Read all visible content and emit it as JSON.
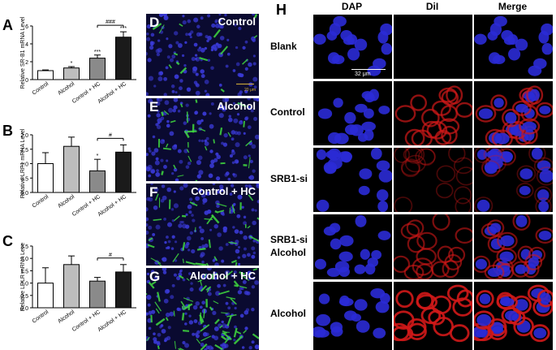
{
  "panels": {
    "A": {
      "letter": "A"
    },
    "B": {
      "letter": "B"
    },
    "C": {
      "letter": "C"
    },
    "D": {
      "letter": "D",
      "label": "Control",
      "scale": "20 μm"
    },
    "E": {
      "letter": "E",
      "label": "Alcohol"
    },
    "F": {
      "letter": "F",
      "label": "Control + HC"
    },
    "G": {
      "letter": "G",
      "label": "Alcohol + HC"
    },
    "H": {
      "letter": "H"
    }
  },
  "chart_data": [
    {
      "type": "bar",
      "panel": "A",
      "categories": [
        "Control",
        "Alcohol",
        "Control + HC",
        "Alcohol + HC"
      ],
      "values": [
        1.0,
        1.3,
        2.4,
        4.75
      ],
      "errors": [
        0.08,
        0.15,
        0.35,
        0.6
      ],
      "colors": [
        "#ffffff",
        "#bdbdbd",
        "#8a8a8a",
        "#1a1a1a"
      ],
      "ylabel": "Relative SR-B1 mRNA Level",
      "ylim": [
        0,
        6
      ],
      "yticks": [
        "0",
        "2",
        "4",
        "6"
      ],
      "annotations": [
        "*",
        "***",
        "***"
      ],
      "bracket": "###"
    },
    {
      "type": "bar",
      "panel": "B",
      "categories": [
        "Control",
        "Alcohol",
        "Control + HC",
        "Alcohol + HC"
      ],
      "values": [
        1.0,
        1.6,
        0.75,
        1.4
      ],
      "errors": [
        0.38,
        0.32,
        0.4,
        0.25
      ],
      "colors": [
        "#ffffff",
        "#bdbdbd",
        "#8a8a8a",
        "#1a1a1a"
      ],
      "ylabel": "Relative LRP1 mRNA Level",
      "ylim": [
        0,
        2.0
      ],
      "yticks": [
        "0.0",
        "0.5",
        "1.0",
        "1.5",
        "2.0"
      ],
      "annotations": [
        "*"
      ],
      "bracket": "#"
    },
    {
      "type": "bar",
      "panel": "C",
      "categories": [
        "Control",
        "Alcohol",
        "Control + HC",
        "Alcohol + HC"
      ],
      "values": [
        1.0,
        1.75,
        1.08,
        1.45
      ],
      "errors": [
        0.62,
        0.35,
        0.15,
        0.3
      ],
      "colors": [
        "#ffffff",
        "#bdbdbd",
        "#8a8a8a",
        "#1a1a1a"
      ],
      "ylabel": "Relative LDLR mRNA Leve",
      "ylim": [
        0,
        2.5
      ],
      "yticks": [
        "0.0",
        "0.5",
        "1.0",
        "1.5",
        "2.0",
        "2.5"
      ],
      "annotations": [],
      "bracket": "#"
    }
  ],
  "grid": {
    "columns": [
      "DAP",
      "DiI",
      "Merge"
    ],
    "rows": [
      "Blank",
      "Control",
      "SRB1-si",
      "SRB1-si\nAlcohol",
      "Alcohol"
    ],
    "scale": "32 μm"
  }
}
